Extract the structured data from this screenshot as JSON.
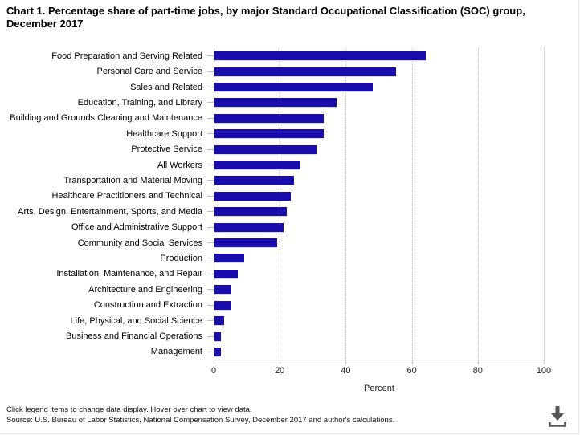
{
  "title": "Chart 1. Percentage share of part-time jobs, by major Standard Occupational Classification (SOC) group, December 2017",
  "chart_data": {
    "type": "bar",
    "orientation": "horizontal",
    "title": "Chart 1. Percentage share of part-time jobs, by major Standard Occupational Classification (SOC) group, December 2017",
    "categories": [
      "Food Preparation and Serving Related",
      "Personal Care and Service",
      "Sales and Related",
      "Education, Training, and Library",
      "Building and Grounds Cleaning and Maintenance",
      "Healthcare Support",
      "Protective Service",
      "All Workers",
      "Transportation and Material Moving",
      "Healthcare Practitioners and Technical",
      "Arts, Design, Entertainment, Sports, and Media",
      "Office and Administrative Support",
      "Community and Social Services",
      "Production",
      "Installation, Maintenance, and Repair",
      "Architecture and Engineering",
      "Construction and Extraction",
      "Life, Physical, and Social Science",
      "Business and Financial Operations",
      "Management"
    ],
    "values": [
      64,
      55,
      48,
      37,
      33,
      33,
      31,
      26,
      24,
      23,
      22,
      21,
      19,
      9,
      7,
      5,
      5,
      3,
      2,
      2
    ],
    "xlabel": "Percent",
    "ylabel": "",
    "xlim": [
      0,
      100
    ],
    "xticks": [
      0,
      20,
      40,
      60,
      80,
      100
    ],
    "grid": "vertical-dotted",
    "legend": "none"
  },
  "colors": {
    "bar": "#1a0dab",
    "axis": "#808080",
    "grid": "#c3c3c3",
    "tick": "#a9c3d8",
    "icon": "#555555"
  },
  "footer": {
    "line1": "Click legend items to change data display. Hover over chart to view data.",
    "line2": "Source: U.S. Bureau of Labor Statistics, National Compensation Survey, December 2017 and author's calculations."
  },
  "icons": {
    "download": "download-icon"
  }
}
